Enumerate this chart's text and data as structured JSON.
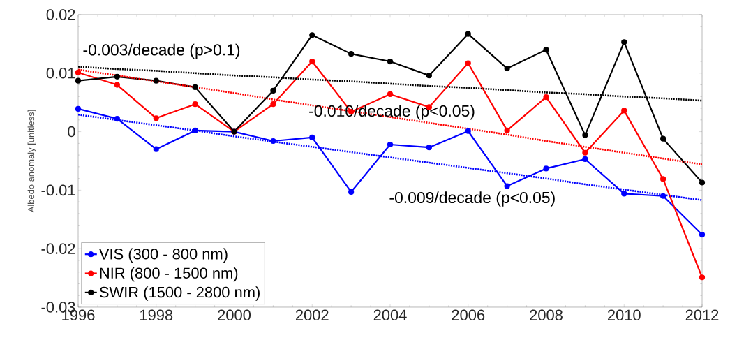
{
  "chart_data": {
    "type": "line",
    "ylabel": "Albedo anomaly [unitless]",
    "x": [
      1996,
      1997,
      1998,
      1999,
      2000,
      2001,
      2002,
      2003,
      2004,
      2005,
      2006,
      2007,
      2008,
      2009,
      2010,
      2011,
      2012
    ],
    "series": [
      {
        "name": "VIS (300 - 800 nm)",
        "color": "#0000ff",
        "marker": "circle",
        "line_style": "solid",
        "values": [
          0.0039,
          0.0022,
          -0.003,
          0.0002,
          0,
          -0.0016,
          -0.001,
          -0.0103,
          -0.0022,
          -0.0027,
          0.0001,
          -0.0093,
          -0.0063,
          -0.0047,
          -0.0106,
          -0.011,
          -0.0176
        ]
      },
      {
        "name": "NIR (800 - 1500 nm)",
        "color": "#ff0000",
        "marker": "circle",
        "line_style": "solid",
        "values": [
          0.0101,
          0.008,
          0.0023,
          0.0047,
          0,
          0.0047,
          0.012,
          0.0034,
          0.0064,
          0.0042,
          0.0117,
          0.0002,
          0.0059,
          -0.0036,
          0.0036,
          -0.0081,
          -0.0249
        ]
      },
      {
        "name": "SWIR (1500 - 2800 nm)",
        "color": "#000000",
        "marker": "circle",
        "line_style": "solid",
        "values": [
          0.0087,
          0.0094,
          0.0087,
          0.0076,
          0,
          0.007,
          0.0165,
          0.0133,
          0.012,
          0.0096,
          0.0167,
          0.0108,
          0.014,
          -0.0006,
          0.0153,
          -0.0012,
          -0.0087
        ]
      },
      {
        "color": "#0000ff",
        "marker": "none",
        "line_style": "dotted",
        "values": [
          0.0029,
          0.002,
          0.0011,
          0.0002,
          -0.0008,
          -0.0017,
          -0.0026,
          -0.0035,
          -0.0044,
          -0.0053,
          -0.0062,
          -0.0071,
          -0.008,
          -0.009,
          -0.0099,
          -0.0108,
          -0.0117
        ]
      },
      {
        "color": "#ff0000",
        "marker": "none",
        "line_style": "dotted",
        "values": [
          0.0106,
          0.0096,
          0.0086,
          0.0076,
          0.0066,
          0.0055,
          0.0045,
          0.0035,
          0.0025,
          0.0015,
          0.0005,
          -0.0005,
          -0.0016,
          -0.0026,
          -0.0036,
          -0.0046,
          -0.0056
        ]
      },
      {
        "color": "#000000",
        "marker": "none",
        "line_style": "dotted",
        "values": [
          0.0111,
          0.0107,
          0.0104,
          0.01,
          0.0096,
          0.0093,
          0.0089,
          0.0086,
          0.0082,
          0.0078,
          0.0075,
          0.0071,
          0.0067,
          0.0064,
          0.006,
          0.0057,
          0.0053
        ]
      }
    ],
    "xlim": [
      1996,
      2012
    ],
    "xticks": [
      1996,
      1998,
      2000,
      2002,
      2004,
      2006,
      2008,
      2010,
      2012
    ],
    "ylim": [
      -0.03,
      0.02
    ],
    "yticks": [
      -0.03,
      -0.02,
      -0.01,
      0,
      0.01,
      0.02
    ],
    "annotations": [
      "-0.003/decade (p>0.1)",
      "-0.010/decade (p<0.05)",
      "-0.009/decade (p<0.05)"
    ],
    "grid": false,
    "legend": "bottom left"
  }
}
